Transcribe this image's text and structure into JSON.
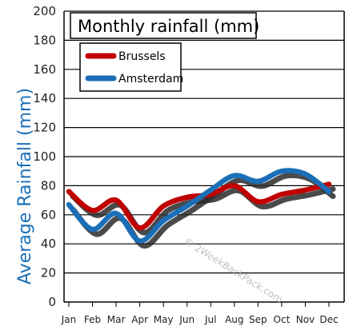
{
  "chart_data": {
    "type": "line",
    "title": "Monthly rainfall (mm)",
    "ylabel": "Average Rainfall (mm)",
    "xlabel": "",
    "categories": [
      "Jan",
      "Feb",
      "Mar",
      "Apr",
      "May",
      "Jun",
      "Jul",
      "Aug",
      "Sep",
      "Oct",
      "Nov",
      "Dec"
    ],
    "y_ticks": [
      "0",
      "20",
      "40",
      "60",
      "80",
      "100",
      "120",
      "140",
      "160",
      "180",
      "200"
    ],
    "ylim": [
      0,
      200
    ],
    "grid": true,
    "legend_position": "top-left",
    "series": [
      {
        "name": "Brussels",
        "color": "#c00000",
        "values": [
          76,
          63,
          70,
          51,
          66,
          72,
          74,
          80,
          69,
          74,
          77,
          81
        ]
      },
      {
        "name": "Amsterdam",
        "color": "#1b6fb8",
        "values": [
          67,
          50,
          61,
          42,
          56,
          66,
          77,
          87,
          83,
          90,
          88,
          76
        ]
      }
    ],
    "watermark": "© 2WeekBackPack.com"
  }
}
